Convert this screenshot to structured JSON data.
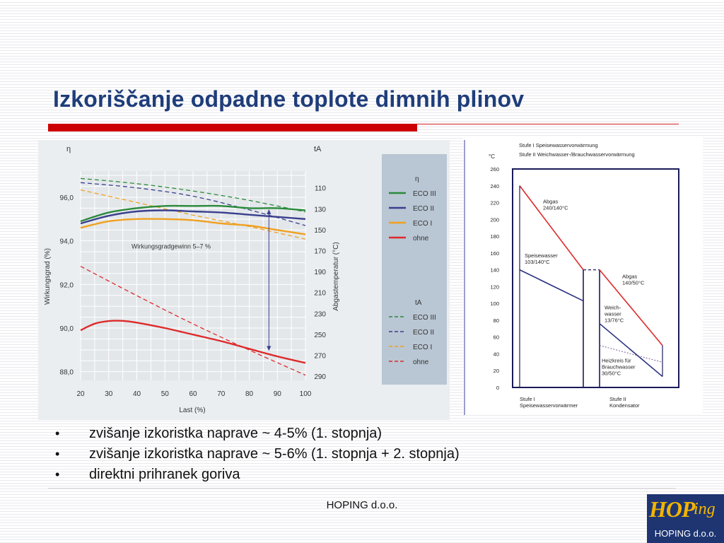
{
  "slide": {
    "title": "Izkoriščanje odpadne toplote dimnih plinov",
    "bullets": [
      "zvišanje izkoristka naprave ~ 4-5% (1. stopnja)",
      "zvišanje izkoristka naprave ~ 5-6% (1. stopnja + 2. stopnja)",
      "direktni prihranek goriva"
    ],
    "bullet_marker": "•",
    "footer": "HOPING d.o.o.",
    "logo": {
      "main": "HOP",
      "suffix": "ing",
      "sub": "HOPING d.o.o."
    }
  },
  "colors": {
    "title": "#1f3d7a",
    "accent_bar": "#cc0000",
    "eco3": "#2a8a3a",
    "eco2": "#3a3f8e",
    "eco1": "#f0a020",
    "ohne": "#dd2a2a"
  },
  "chart_data": [
    {
      "type": "line",
      "xlabel": "Last (%)",
      "ylabel": "Wirkungsgrad (%)",
      "y2label": "Abgastemperatur (°C)",
      "y_axis_symbol": "η",
      "y2_axis_symbol": "tA",
      "x_ticks": [
        20,
        30,
        40,
        50,
        60,
        70,
        80,
        90,
        100
      ],
      "y_ticks": [
        "88,0",
        "90,0",
        "92,0",
        "94,0",
        "96,0"
      ],
      "y2_ticks": [
        "110",
        "130",
        "150",
        "170",
        "190",
        "210",
        "230",
        "250",
        "270",
        "290"
      ],
      "xlim": [
        20,
        100
      ],
      "ylim": [
        87.6,
        97.2
      ],
      "y2lim": [
        94,
        294
      ],
      "annotation": "Wirkungsgradgewinn 5–7 %",
      "annotation_arrow": {
        "x": 87,
        "y_from": 88.95,
        "y_to": 95.45
      },
      "legend_eta_title": "η",
      "legend_ta_title": "tA",
      "legend_position": "right",
      "series_eta": [
        {
          "name": "ECO III",
          "color": "#2a8a3a",
          "x": [
            20,
            30,
            40,
            50,
            60,
            70,
            80,
            90,
            100
          ],
          "y": [
            94.9,
            95.3,
            95.5,
            95.6,
            95.6,
            95.6,
            95.5,
            95.5,
            95.4
          ]
        },
        {
          "name": "ECO II",
          "color": "#3a3f8e",
          "x": [
            20,
            30,
            40,
            50,
            60,
            70,
            80,
            90,
            100
          ],
          "y": [
            94.8,
            95.15,
            95.35,
            95.4,
            95.35,
            95.3,
            95.2,
            95.1,
            95.0
          ]
        },
        {
          "name": "ECO I",
          "color": "#f0a020",
          "x": [
            20,
            30,
            40,
            50,
            60,
            70,
            80,
            90,
            100
          ],
          "y": [
            94.6,
            94.9,
            95.0,
            95.0,
            94.95,
            94.8,
            94.7,
            94.5,
            94.3
          ]
        },
        {
          "name": "ohne",
          "color": "#dd2a2a",
          "x": [
            20,
            25,
            30,
            35,
            40,
            50,
            60,
            70,
            80,
            90,
            100
          ],
          "y": [
            89.9,
            90.2,
            90.32,
            90.33,
            90.25,
            90.0,
            89.7,
            89.4,
            89.05,
            88.7,
            88.4
          ]
        }
      ],
      "series_ta": [
        {
          "name": "ECO III",
          "color": "#2a8a3a",
          "x": [
            20,
            40,
            60,
            80,
            100
          ],
          "y": [
            101,
            106,
            113,
            122,
            133
          ]
        },
        {
          "name": "ECO II",
          "color": "#3a3f8e",
          "x": [
            20,
            40,
            60,
            80,
            100
          ],
          "y": [
            105,
            110,
            118,
            131,
            146
          ]
        },
        {
          "name": "ECO I",
          "color": "#f0a020",
          "x": [
            20,
            40,
            60,
            80,
            100
          ],
          "y": [
            112,
            124,
            136,
            147,
            159
          ]
        },
        {
          "name": "ohne",
          "color": "#dd2a2a",
          "x": [
            20,
            40,
            60,
            80,
            100
          ],
          "y": [
            185,
            213,
            240,
            265,
            289
          ]
        }
      ]
    },
    {
      "type": "line",
      "title_lines": [
        "Stufe I   Speisewasservorwärmung",
        "Stufe II  Weichwasser-/Brauchwasservorwärmung"
      ],
      "y_unit": "°C",
      "y_ticks": [
        0,
        20,
        40,
        60,
        80,
        100,
        120,
        140,
        160,
        180,
        200,
        220,
        240,
        260
      ],
      "ylim": [
        0,
        260
      ],
      "x_labels": [
        [
          "Stufe I",
          "Speisewasservorwärmer"
        ],
        [
          "Stufe II",
          "Kondensator"
        ]
      ],
      "annotations": [
        {
          "lines": [
            "Abgas",
            "240/140°C"
          ]
        },
        {
          "lines": [
            "Speisewasser",
            "103/140°C"
          ]
        },
        {
          "lines": [
            "Abgas",
            "140/50°C"
          ]
        },
        {
          "lines": [
            "Weich-",
            "wasser",
            "13/76°C"
          ]
        },
        {
          "lines": [
            "Heizkreis für",
            "Brauchwasser",
            "30/50°C"
          ]
        }
      ],
      "series": [
        {
          "stage": 1,
          "color": "#dd2a2a",
          "y_start": 240,
          "y_end": 140
        },
        {
          "stage": 1,
          "color": "#2a2f7e",
          "y_start": 140,
          "y_end": 103
        },
        {
          "stage": 2,
          "color": "#dd2a2a",
          "y_start": 140,
          "y_end": 50
        },
        {
          "stage": 2,
          "color": "#2a2f7e",
          "y_start": 76,
          "y_end": 13
        },
        {
          "stage": 2,
          "color": "#7a5a9a",
          "style": "dotted",
          "y_start": 50,
          "y_end": 30
        }
      ]
    }
  ]
}
